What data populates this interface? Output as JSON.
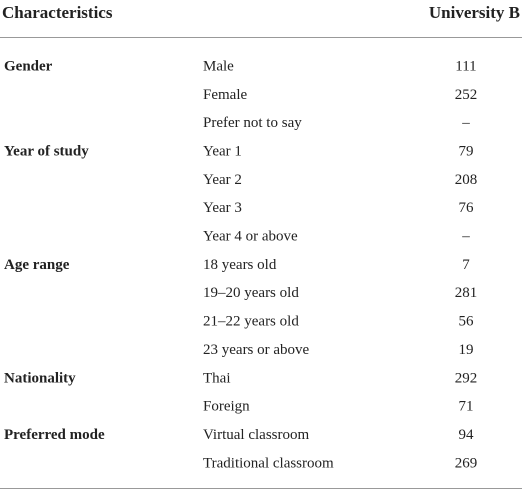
{
  "header": {
    "title": "Characteristics",
    "column": "University B"
  },
  "groups": [
    {
      "label": "Gender",
      "rows": [
        {
          "label": "Male",
          "value": 111
        },
        {
          "label": "Female",
          "value": 252
        },
        {
          "label": "Prefer not to say",
          "value": "–"
        }
      ]
    },
    {
      "label": "Year of study",
      "rows": [
        {
          "label": "Year 1",
          "value": 79
        },
        {
          "label": "Year 2",
          "value": 208
        },
        {
          "label": "Year 3",
          "value": 76
        },
        {
          "label": "Year 4 or above",
          "value": "–"
        }
      ]
    },
    {
      "label": "Age range",
      "rows": [
        {
          "label": "18 years old",
          "value": 7
        },
        {
          "label": "19–20 years old",
          "value": 281
        },
        {
          "label": "21–22 years old",
          "value": 56
        },
        {
          "label": "23 years or above",
          "value": 19
        }
      ]
    },
    {
      "label": "Nationality",
      "rows": [
        {
          "label": "Thai",
          "value": 292
        },
        {
          "label": "Foreign",
          "value": 71
        }
      ]
    },
    {
      "label": "Preferred mode",
      "rows": [
        {
          "label": "Virtual classroom",
          "value": 94
        },
        {
          "label": "Traditional classroom",
          "value": 269
        }
      ]
    }
  ]
}
